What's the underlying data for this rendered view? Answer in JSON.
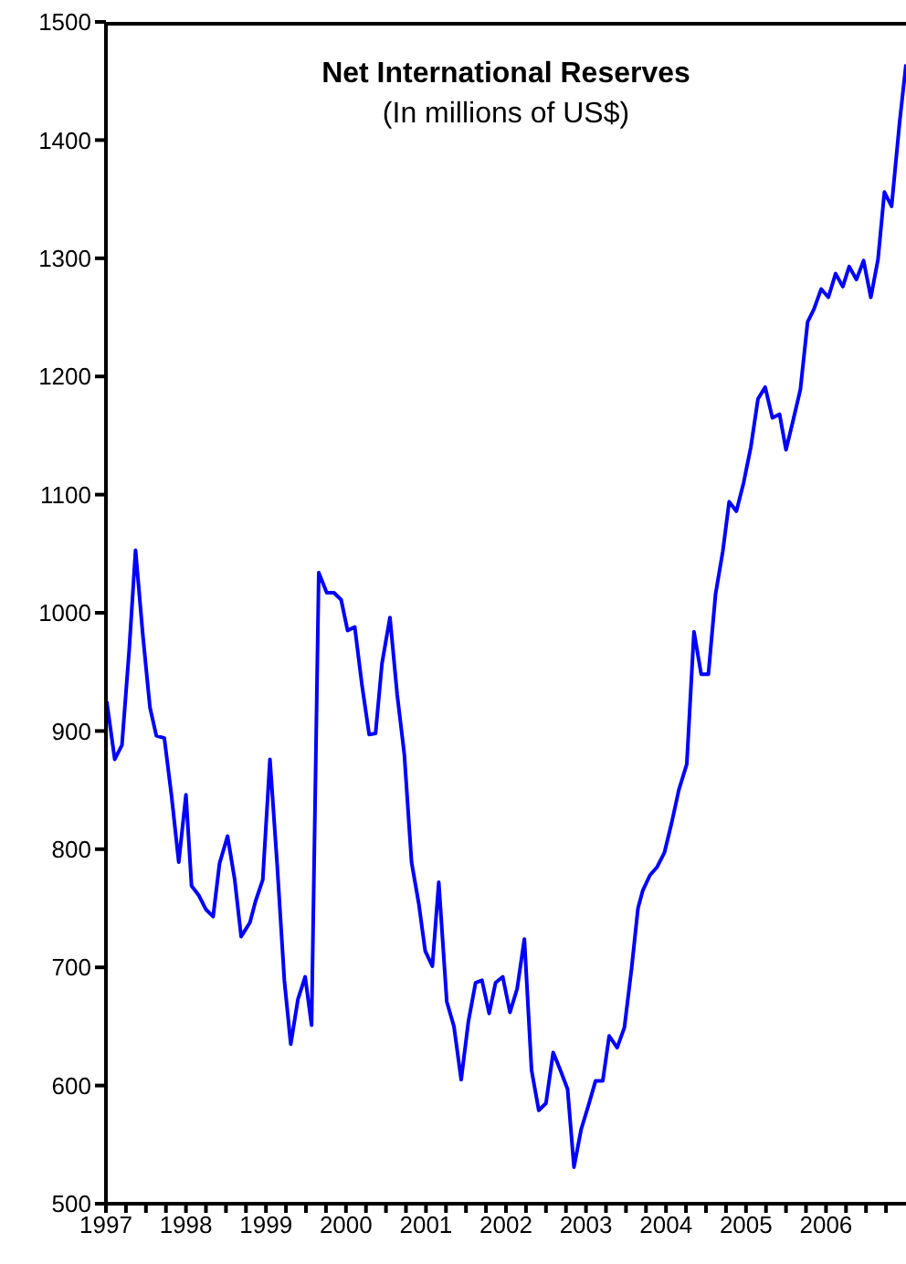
{
  "chart_data": {
    "type": "line",
    "title": "Net International Reserves",
    "subtitle": "(In millions of US$)",
    "x": [
      1997.01,
      1997.11,
      1997.2,
      1997.29,
      1997.37,
      1997.46,
      1997.55,
      1997.63,
      1997.73,
      1997.82,
      1997.91,
      1998.0,
      1998.07,
      1998.16,
      1998.25,
      1998.34,
      1998.42,
      1998.52,
      1998.61,
      1998.69,
      1998.8,
      1998.87,
      1998.96,
      1999.05,
      1999.14,
      1999.23,
      1999.31,
      1999.4,
      1999.49,
      1999.57,
      1999.66,
      1999.76,
      1999.85,
      1999.94,
      2000.02,
      2000.11,
      2000.2,
      2000.29,
      2000.37,
      2000.45,
      2000.55,
      2000.64,
      2000.73,
      2000.82,
      2000.91,
      2000.99,
      2001.08,
      2001.16,
      2001.26,
      2001.35,
      2001.44,
      2001.53,
      2001.62,
      2001.7,
      2001.79,
      2001.87,
      2001.96,
      2002.05,
      2002.14,
      2002.23,
      2002.32,
      2002.41,
      2002.5,
      2002.59,
      2002.68,
      2002.77,
      2002.85,
      2002.94,
      2003.03,
      2003.12,
      2003.21,
      2003.29,
      2003.39,
      2003.48,
      2003.57,
      2003.65,
      2003.71,
      2003.8,
      2003.89,
      2003.98,
      2004.07,
      2004.16,
      2004.26,
      2004.35,
      2004.44,
      2004.53,
      2004.62,
      2004.71,
      2004.79,
      2004.88,
      2004.97,
      2005.06,
      2005.15,
      2005.24,
      2005.33,
      2005.42,
      2005.5,
      2005.59,
      2005.68,
      2005.77,
      2005.85,
      2005.94,
      2006.03,
      2006.12,
      2006.21,
      2006.29,
      2006.38,
      2006.47,
      2006.56,
      2006.65,
      2006.73,
      2006.82,
      2006.92,
      2007.0
    ],
    "series": [
      {
        "color": "#0000ff",
        "values": [
          925,
          876,
          888,
          968,
          1053,
          982,
          920,
          896,
          894,
          845,
          789,
          846,
          769,
          761,
          749,
          743,
          788,
          811,
          774,
          726,
          738,
          756,
          774,
          876,
          787,
          689,
          635,
          673,
          692,
          651,
          1034,
          1017,
          1017,
          1011,
          985,
          988,
          939,
          897,
          898,
          957,
          996,
          931,
          880,
          789,
          754,
          714,
          701,
          772,
          671,
          650,
          605,
          654,
          687,
          689,
          661,
          687,
          692,
          662,
          682,
          724,
          613,
          579,
          585,
          628,
          613,
          597,
          531,
          563,
          583,
          604,
          604,
          642,
          632,
          649,
          699,
          750,
          765,
          778,
          785,
          797,
          822,
          850,
          872,
          984,
          948,
          948,
          1016,
          1052,
          1094,
          1086,
          1110,
          1140,
          1181,
          1191,
          1165,
          1168,
          1138,
          1163,
          1189,
          1246,
          1257,
          1274,
          1267,
          1287,
          1276,
          1293,
          1282,
          1298,
          1267,
          1299,
          1356,
          1344,
          1415,
          1464
        ]
      }
    ],
    "xlim": [
      1997,
      2007
    ],
    "xticks": [
      1997,
      {
        "value": 1997.25,
        "label": null
      },
      {
        "value": 1997.5,
        "label": null
      },
      {
        "value": 1997.75,
        "label": null
      },
      1998,
      {
        "value": 1998.25,
        "label": null
      },
      {
        "value": 1998.5,
        "label": null
      },
      {
        "value": 1998.75,
        "label": null
      },
      1999,
      {
        "value": 1999.25,
        "label": null
      },
      {
        "value": 1999.5,
        "label": null
      },
      {
        "value": 1999.75,
        "label": null
      },
      2000,
      {
        "value": 2000.25,
        "label": null
      },
      {
        "value": 2000.5,
        "label": null
      },
      {
        "value": 2000.75,
        "label": null
      },
      2001,
      {
        "value": 2001.25,
        "label": null
      },
      {
        "value": 2001.5,
        "label": null
      },
      {
        "value": 2001.75,
        "label": null
      },
      2002,
      {
        "value": 2002.25,
        "label": null
      },
      {
        "value": 2002.5,
        "label": null
      },
      {
        "value": 2002.75,
        "label": null
      },
      2003,
      {
        "value": 2003.25,
        "label": null
      },
      {
        "value": 2003.5,
        "label": null
      },
      {
        "value": 2003.75,
        "label": null
      },
      2004,
      {
        "value": 2004.25,
        "label": null
      },
      {
        "value": 2004.5,
        "label": null
      },
      {
        "value": 2004.75,
        "label": null
      },
      2005,
      {
        "value": 2005.25,
        "label": null
      },
      {
        "value": 2005.5,
        "label": null
      },
      {
        "value": 2005.75,
        "label": null
      },
      2006,
      {
        "value": 2006.25,
        "label": null
      },
      {
        "value": 2006.5,
        "label": null
      },
      {
        "value": 2006.75,
        "label": null
      }
    ],
    "ylim": [
      500,
      1500
    ],
    "yticks": [
      500,
      600,
      700,
      800,
      900,
      1000,
      1100,
      1200,
      1300,
      1400,
      1500
    ],
    "grid": false,
    "marker": "none",
    "line_style": "solid"
  }
}
